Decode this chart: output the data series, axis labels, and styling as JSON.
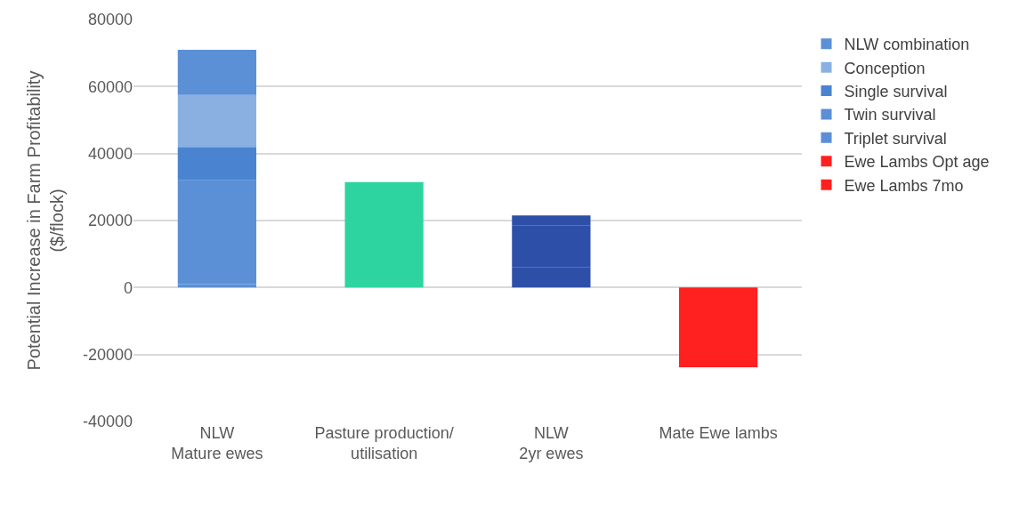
{
  "chart_data": {
    "type": "bar",
    "stacked": true,
    "ylabel": "Potential Increase in Farm Profitability\n($/flock)",
    "categories": [
      "NLW\nMature ewes",
      "Pasture production/\nutilisation",
      "NLW\n2yr ewes",
      "Mate Ewe lambs"
    ],
    "series": [
      {
        "name": "Ewe Lambs 7mo",
        "color": "#ff2020",
        "values": [
          null,
          null,
          null,
          null
        ]
      },
      {
        "name": "Ewe Lambs Opt age",
        "color": "#ff2020",
        "values": [
          null,
          null,
          null,
          -23800
        ]
      },
      {
        "name": "Triplet survival",
        "color": "#5b8fd6",
        "colors": [
          "#5b8fd6",
          "#2dd4a0",
          "#2e4fa8",
          "#5b8fd6"
        ],
        "values": [
          1000,
          31500,
          null,
          null
        ]
      },
      {
        "name": "Twin survival",
        "color": "#5b8fd6",
        "colors": [
          "#5b8fd6",
          "#5b8fd6",
          "#2e4fa8",
          "#5b8fd6"
        ],
        "values": [
          31000,
          null,
          6000,
          null
        ]
      },
      {
        "name": "Single survival",
        "color": "#4a84d0",
        "colors": [
          "#4a84d0",
          "#4a84d0",
          "#2e4fa8",
          "#4a84d0"
        ],
        "values": [
          10000,
          null,
          4700,
          null
        ]
      },
      {
        "name": "Conception",
        "color": "#8ab0e2",
        "colors": [
          "#8ab0e2",
          "#8ab0e2",
          "#2e4fa8",
          "#8ab0e2"
        ],
        "values": [
          15500,
          null,
          7800,
          null
        ]
      },
      {
        "name": "NLW combination",
        "color": "#5b8fd6",
        "colors": [
          "#5b8fd6",
          "#5b8fd6",
          "#2e4fa8",
          "#5b8fd6"
        ],
        "values": [
          13500,
          null,
          3000,
          null
        ]
      }
    ],
    "ylim": [
      -40000,
      80000
    ],
    "yticks": [
      -40000,
      -20000,
      0,
      20000,
      40000,
      60000,
      80000
    ],
    "grid": "y",
    "legend": "right"
  }
}
